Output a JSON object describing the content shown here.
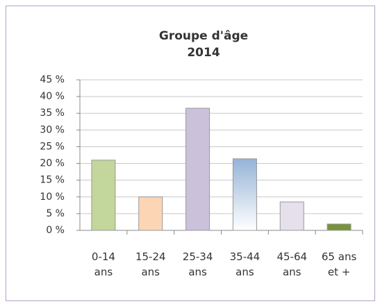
{
  "chart_data": {
    "type": "bar",
    "title": "Groupe d'âge",
    "subtitle": "2014",
    "categories": [
      "0-14 ans",
      "15-24 ans",
      "25-34 ans",
      "35-44 ans",
      "45-64 ans",
      "65 ans et +"
    ],
    "values": [
      21.0,
      10.0,
      36.5,
      21.4,
      8.5,
      1.9
    ],
    "colors": [
      "#c3d69b",
      "#fcd5b5",
      "#ccc1da",
      "#95b3d7",
      "#e6e0ec",
      "#77933c"
    ],
    "ylim": [
      0,
      45
    ],
    "yticks": [
      {
        "value": 0,
        "label": "0 %"
      },
      {
        "value": 5,
        "label": "5 %"
      },
      {
        "value": 10,
        "label": "10 %"
      },
      {
        "value": 15,
        "label": "15 %"
      },
      {
        "value": 20,
        "label": "20 %"
      },
      {
        "value": 25,
        "label": "25 %"
      },
      {
        "value": 30,
        "label": "30 %"
      },
      {
        "value": 35,
        "label": "35 %"
      },
      {
        "value": 40,
        "label": "40 %"
      },
      {
        "value": 45,
        "label": "45 %"
      }
    ],
    "grid": true
  }
}
